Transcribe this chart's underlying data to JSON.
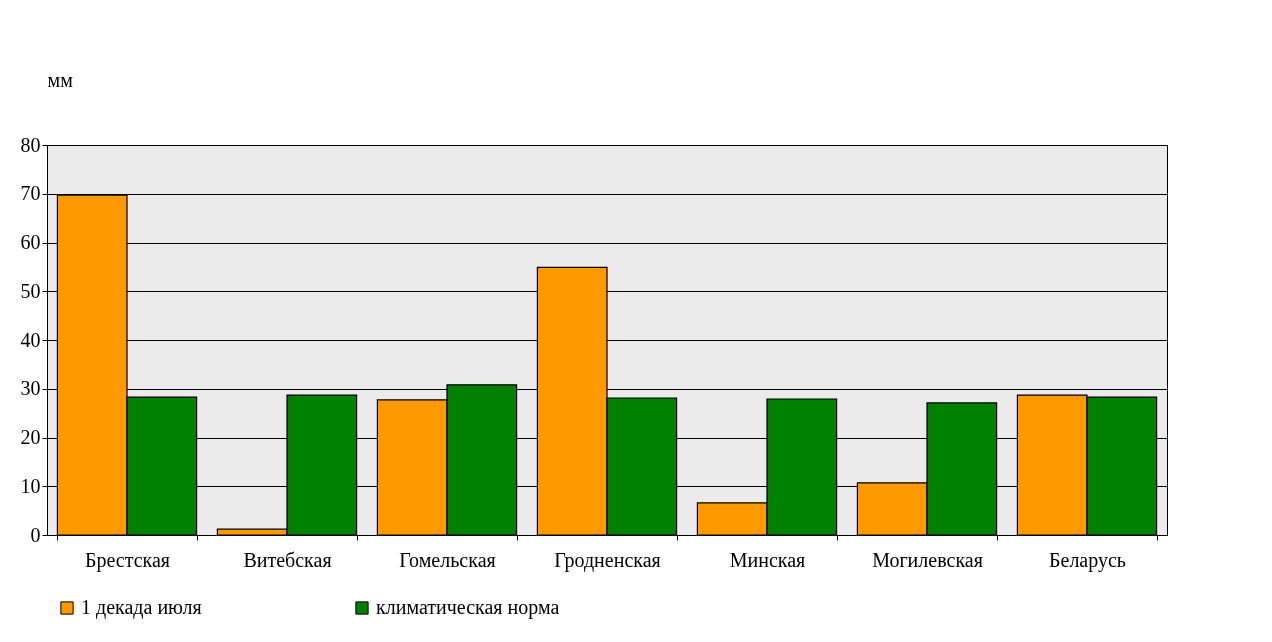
{
  "chart_data": {
    "type": "bar",
    "ylabel": "мм",
    "categories": [
      "Брестская",
      "Витебская",
      "Гомельская",
      "Гродненская",
      "Минская",
      "Могилевская",
      "Беларусь"
    ],
    "series": [
      {
        "name": "1 декада июля",
        "color": "#ff9900",
        "values": [
          69.7,
          1.2,
          27.7,
          54.9,
          6.6,
          10.7,
          28.7
        ]
      },
      {
        "name": "климатическая норма",
        "color": "#008000",
        "values": [
          28.3,
          28.7,
          30.8,
          28.1,
          27.9,
          27.1,
          28.3
        ]
      }
    ],
    "ylim": [
      0,
      80
    ],
    "yticks": [
      0,
      10,
      20,
      30,
      40,
      50,
      60,
      70,
      80
    ],
    "grid": "y",
    "legend": "bottom"
  }
}
